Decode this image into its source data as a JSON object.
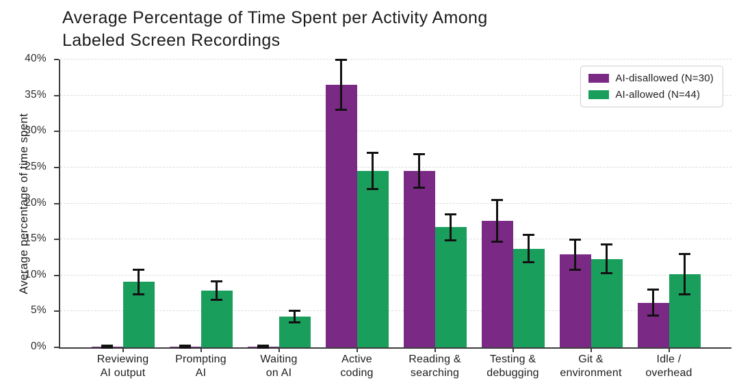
{
  "chart_data": {
    "type": "bar",
    "title": "Average Percentage of Time Spent per Activity Among\nLabeled Screen Recordings",
    "ylabel": "Average percentage of time spent",
    "xlabel": "",
    "ylim": [
      0,
      40
    ],
    "ytick_step": 5,
    "yticks": [
      "0%",
      "5%",
      "10%",
      "15%",
      "20%",
      "25%",
      "30%",
      "35%",
      "40%"
    ],
    "grid": "horizontal-dashed",
    "legend_position": "upper-right",
    "error_bar_color": "#111111",
    "axis_color": "#3c3c3c",
    "gridline_color": "#dcdcdc",
    "categories": [
      "Reviewing\nAI output",
      "Prompting\nAI",
      "Waiting\non AI",
      "Active\ncoding",
      "Reading &\nsearching",
      "Testing &\ndebugging",
      "Git &\nenvironment",
      "Idle /\noverhead"
    ],
    "series": [
      {
        "name": "AI-disallowed (N=30)",
        "color": "#7a2a85",
        "values": [
          0.1,
          0.1,
          0.1,
          36.5,
          24.5,
          17.6,
          12.9,
          6.2
        ],
        "errors": [
          0.1,
          0.1,
          0.1,
          3.5,
          2.3,
          2.9,
          2.1,
          1.8
        ]
      },
      {
        "name": "AI-allowed (N=44)",
        "color": "#1a9e5c",
        "values": [
          9.1,
          7.9,
          4.3,
          24.5,
          16.7,
          13.7,
          12.3,
          10.2
        ],
        "errors": [
          1.7,
          1.3,
          0.8,
          2.5,
          1.8,
          1.9,
          2.0,
          2.8
        ]
      }
    ]
  }
}
